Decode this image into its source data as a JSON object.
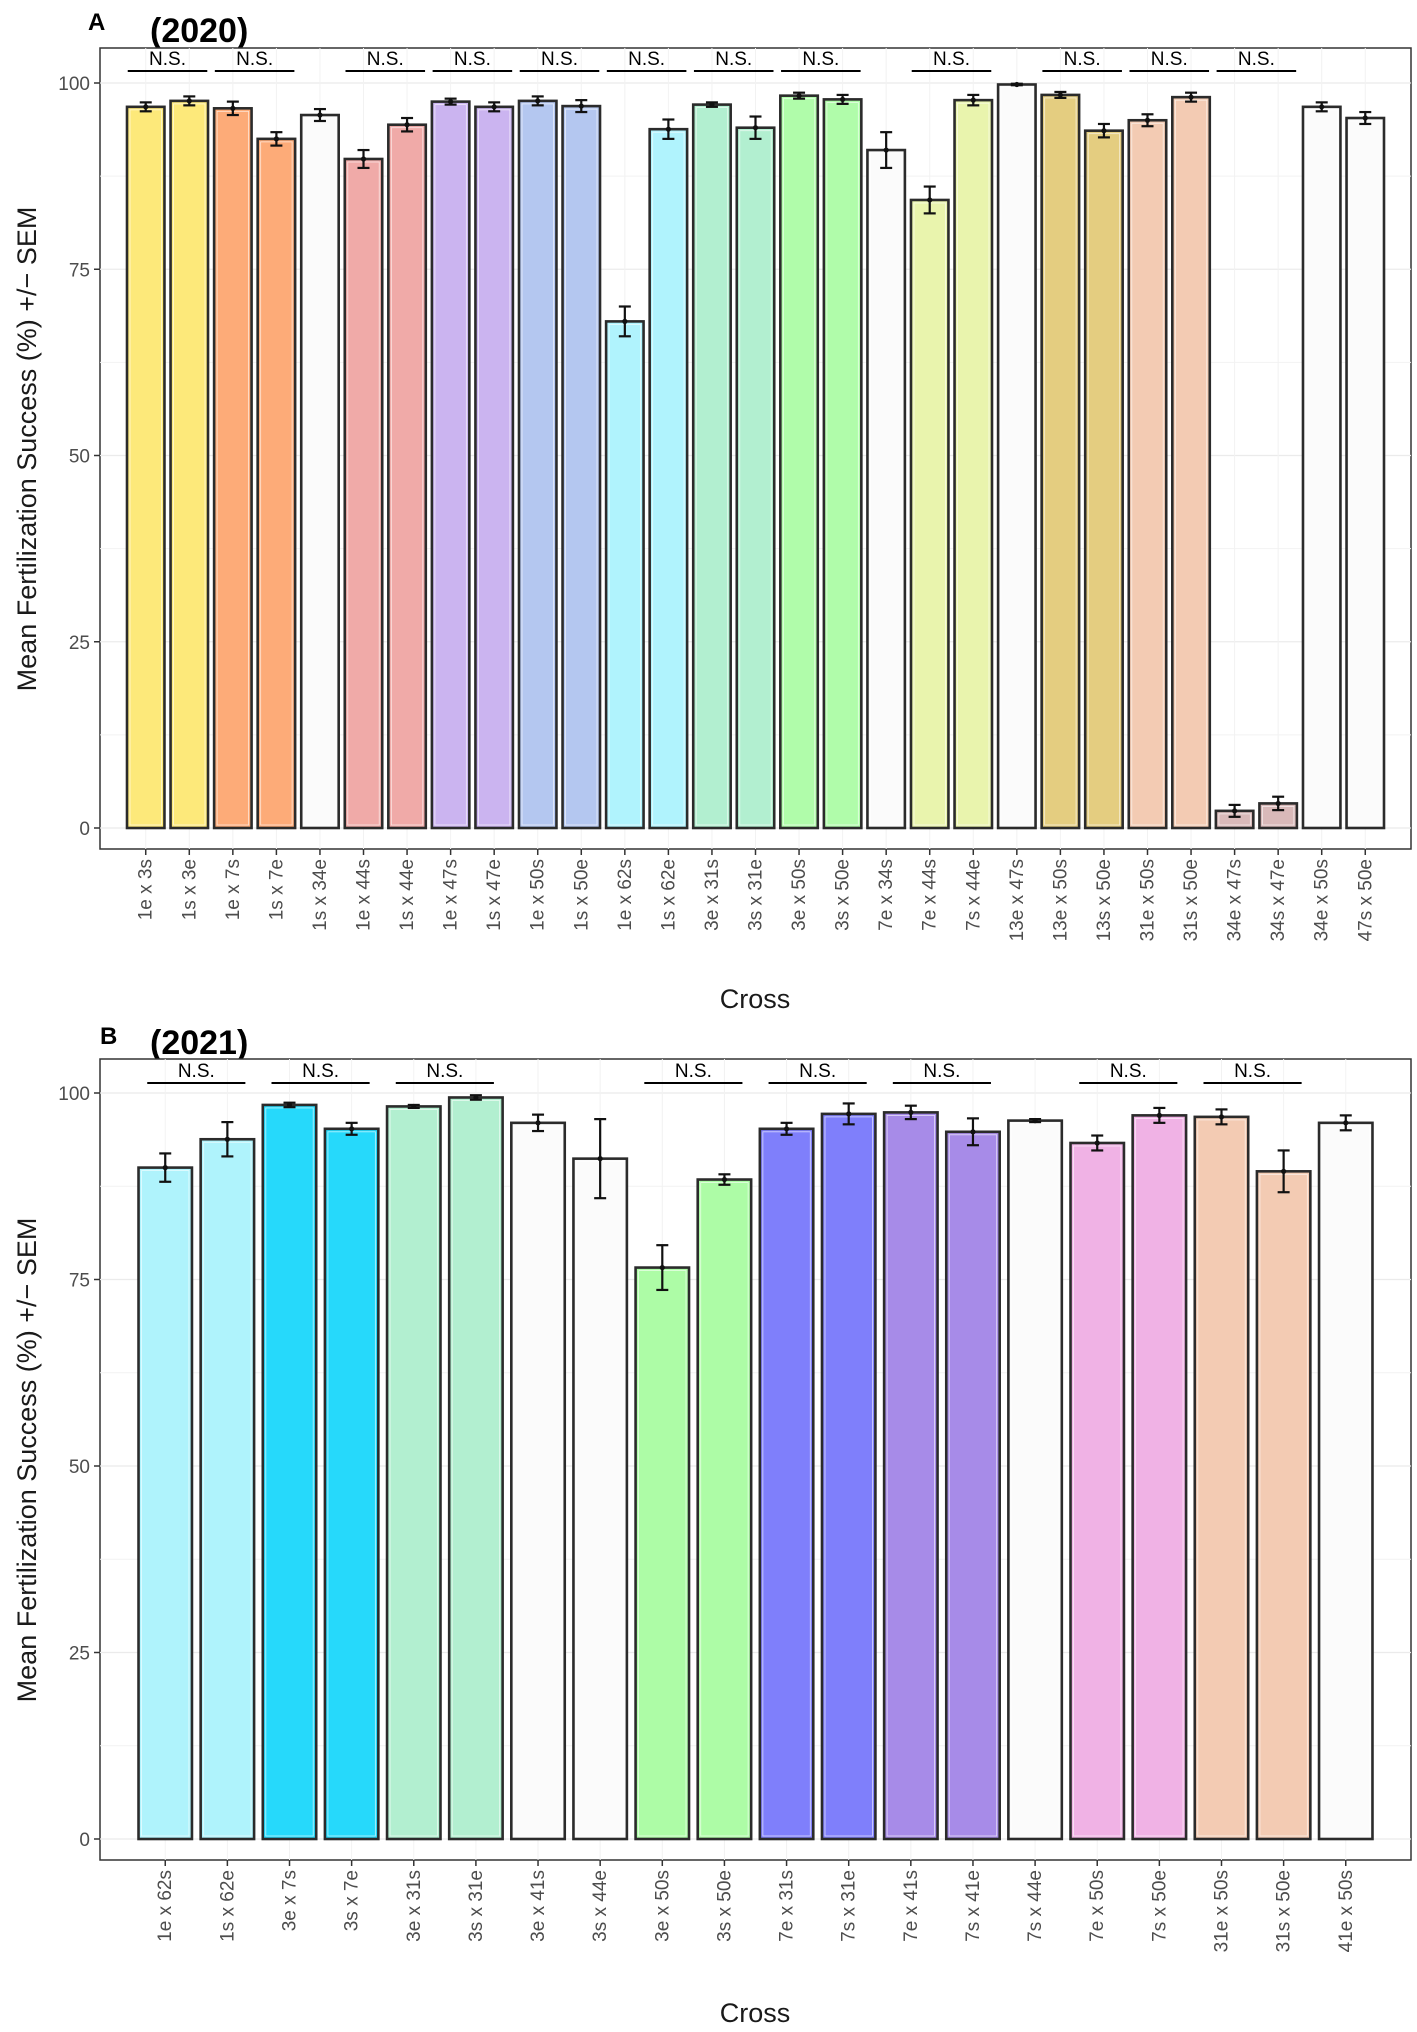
{
  "chart_data": [
    {
      "type": "bar",
      "panel": "A",
      "title": "(2020)",
      "xlabel": "Cross",
      "ylabel": "Mean Fertilization Success (%) +/− SEM",
      "ylim": [
        0,
        100
      ],
      "yticks": [
        0,
        25,
        50,
        75,
        100
      ],
      "grid": true,
      "categories": [
        "1e x 3s",
        "1s x 3e",
        "1e x 7s",
        "1s x 7e",
        "1s x 34e",
        "1e x 44s",
        "1s x 44e",
        "1e x 47s",
        "1s x 47e",
        "1e x 50s",
        "1s x 50e",
        "1e x 62s",
        "1s x 62e",
        "3e x 31s",
        "3s x 31e",
        "3e x 50s",
        "3s x 50e",
        "7e x 34s",
        "7e x 44s",
        "7s x 44e",
        "13e x 47s",
        "13e x 50s",
        "13s x 50e",
        "31e x 50s",
        "31s x 50e",
        "34e x 47s",
        "34s x 47e",
        "34e x 50s",
        "47s x 50e"
      ],
      "values": [
        96.8,
        97.6,
        96.6,
        92.5,
        95.7,
        89.8,
        94.4,
        97.5,
        96.8,
        97.6,
        96.9,
        68.0,
        93.8,
        97.1,
        94.0,
        98.3,
        97.8,
        91.0,
        84.3,
        97.7,
        99.8,
        98.4,
        93.6,
        95.0,
        98.1,
        2.3,
        3.3,
        96.8,
        95.3
      ],
      "sem": [
        0.6,
        0.6,
        0.9,
        0.9,
        0.8,
        1.2,
        0.9,
        0.4,
        0.6,
        0.6,
        0.8,
        2.0,
        1.3,
        0.3,
        1.5,
        0.4,
        0.6,
        2.4,
        1.8,
        0.7,
        0.1,
        0.4,
        0.9,
        0.8,
        0.6,
        0.8,
        0.9,
        0.6,
        0.8
      ],
      "colors": [
        "#fde97a",
        "#fde97a",
        "#fdab78",
        "#fdab78",
        "#fbfbfb",
        "#f0aaa8",
        "#f0aaa8",
        "#cbb4f0",
        "#cbb4f0",
        "#b4c7f0",
        "#b4c7f0",
        "#b0f3fd",
        "#b0f3fd",
        "#b2efd0",
        "#b2efd0",
        "#b0fcaa",
        "#b0fcaa",
        "#fbfbfb",
        "#e9f4ad",
        "#e9f4ad",
        "#fbfbfb",
        "#e4cd80",
        "#e4cd80",
        "#f3cbb3",
        "#f3cbb3",
        "#d9b9b9",
        "#d9b9b9",
        "#fbfbfb",
        "#fbfbfb"
      ],
      "annotations": [
        {
          "text": "N.S.",
          "from": 0,
          "to": 1
        },
        {
          "text": "N.S.",
          "from": 2,
          "to": 3
        },
        {
          "text": "N.S.",
          "from": 5,
          "to": 6
        },
        {
          "text": "N.S.",
          "from": 7,
          "to": 8
        },
        {
          "text": "N.S.",
          "from": 9,
          "to": 10
        },
        {
          "text": "N.S.",
          "from": 11,
          "to": 12
        },
        {
          "text": "N.S.",
          "from": 13,
          "to": 14
        },
        {
          "text": "N.S.",
          "from": 15,
          "to": 16
        },
        {
          "text": "N.S.",
          "from": 18,
          "to": 19
        },
        {
          "text": "N.S.",
          "from": 21,
          "to": 22
        },
        {
          "text": "N.S.",
          "from": 23,
          "to": 24
        },
        {
          "text": "N.S.",
          "from": 25,
          "to": 26
        }
      ]
    },
    {
      "type": "bar",
      "panel": "B",
      "title": "(2021)",
      "xlabel": "Cross",
      "ylabel": "Mean Fertilization Success (%) +/− SEM",
      "ylim": [
        0,
        100
      ],
      "yticks": [
        0,
        25,
        50,
        75,
        100
      ],
      "grid": true,
      "categories": [
        "1e x 62s",
        "1s x 62e",
        "3e x 7s",
        "3s x 7e",
        "3e x 31s",
        "3s x 31e",
        "3e x 41s",
        "3s x 44e",
        "3e x 50s",
        "3s x 50e",
        "7e x 31s",
        "7s x 31e",
        "7e x 41s",
        "7s x 41e",
        "7s x 44e",
        "7e x 50s",
        "7s x 50e",
        "31e x 50s",
        "31s x 50e",
        "41e x 50s"
      ],
      "values": [
        90.0,
        93.8,
        98.4,
        95.2,
        98.2,
        99.4,
        96.0,
        91.2,
        76.6,
        88.4,
        95.2,
        97.2,
        97.4,
        94.8,
        96.3,
        93.3,
        97.0,
        96.8,
        89.5,
        96.0
      ],
      "sem": [
        1.9,
        2.3,
        0.3,
        0.8,
        0.2,
        0.3,
        1.1,
        5.3,
        3.0,
        0.7,
        0.8,
        1.4,
        0.9,
        1.8,
        0.2,
        1.0,
        1.0,
        1.0,
        2.8,
        1.0
      ],
      "colors": [
        "#aff3fc",
        "#aff3fc",
        "#26d9fb",
        "#26d9fb",
        "#b2efd0",
        "#b2efd0",
        "#fbfbfb",
        "#fbfbfb",
        "#adfca6",
        "#adfca6",
        "#7f7ffb",
        "#7f7ffb",
        "#a78be8",
        "#a78be8",
        "#fbfbfb",
        "#f0b2e5",
        "#f0b2e5",
        "#f3cbb3",
        "#f3cbb3",
        "#fbfbfb"
      ],
      "annotations": [
        {
          "text": "N.S.",
          "from": 0,
          "to": 1
        },
        {
          "text": "N.S.",
          "from": 2,
          "to": 3
        },
        {
          "text": "N.S.",
          "from": 4,
          "to": 5
        },
        {
          "text": "N.S.",
          "from": 8,
          "to": 9
        },
        {
          "text": "N.S.",
          "from": 10,
          "to": 11
        },
        {
          "text": "N.S.",
          "from": 12,
          "to": 13
        },
        {
          "text": "N.S.",
          "from": 15,
          "to": 16
        },
        {
          "text": "N.S.",
          "from": 17,
          "to": 18
        }
      ]
    }
  ]
}
